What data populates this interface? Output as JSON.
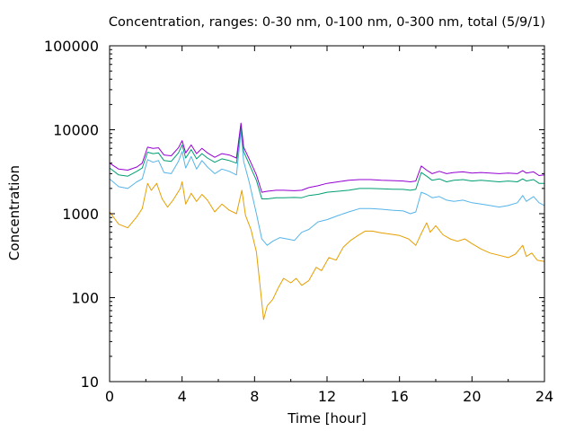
{
  "chart_data": {
    "type": "line",
    "title": "Concentration, ranges: 0-30 nm, 0-100 nm, 0-300 nm, total (5/9/1)",
    "xlabel": "Time [hour]",
    "ylabel": "Concentration",
    "xlim": [
      0,
      24
    ],
    "ylim": [
      10,
      100000
    ],
    "yscale": "log",
    "grid": false,
    "legend": "none",
    "x_ticks": [
      "0",
      "4",
      "8",
      "12",
      "16",
      "20",
      "24"
    ],
    "y_ticks": [
      "10",
      "100",
      "1000",
      "10000",
      "100000"
    ],
    "series": [
      {
        "color": "#e69f00",
        "points": [
          [
            0,
            1050
          ],
          [
            0.5,
            750
          ],
          [
            1,
            680
          ],
          [
            1.5,
            920
          ],
          [
            1.8,
            1150
          ],
          [
            2.1,
            2300
          ],
          [
            2.3,
            1900
          ],
          [
            2.6,
            2300
          ],
          [
            2.9,
            1500
          ],
          [
            3.2,
            1200
          ],
          [
            3.5,
            1450
          ],
          [
            3.9,
            2000
          ],
          [
            4.0,
            2400
          ],
          [
            4.2,
            1300
          ],
          [
            4.5,
            1750
          ],
          [
            4.8,
            1400
          ],
          [
            5.1,
            1700
          ],
          [
            5.4,
            1450
          ],
          [
            5.8,
            1050
          ],
          [
            6.2,
            1300
          ],
          [
            6.6,
            1100
          ],
          [
            7.0,
            1000
          ],
          [
            7.3,
            1900
          ],
          [
            7.5,
            950
          ],
          [
            7.8,
            650
          ],
          [
            8.1,
            350
          ],
          [
            8.3,
            140
          ],
          [
            8.5,
            55
          ],
          [
            8.7,
            80
          ],
          [
            9.0,
            95
          ],
          [
            9.3,
            130
          ],
          [
            9.6,
            170
          ],
          [
            10.0,
            150
          ],
          [
            10.3,
            170
          ],
          [
            10.6,
            140
          ],
          [
            11.0,
            160
          ],
          [
            11.4,
            230
          ],
          [
            11.7,
            210
          ],
          [
            12.1,
            300
          ],
          [
            12.5,
            280
          ],
          [
            12.9,
            400
          ],
          [
            13.3,
            480
          ],
          [
            13.7,
            550
          ],
          [
            14.1,
            620
          ],
          [
            14.5,
            620
          ],
          [
            15.0,
            590
          ],
          [
            15.5,
            570
          ],
          [
            16.0,
            550
          ],
          [
            16.5,
            500
          ],
          [
            16.9,
            420
          ],
          [
            17.2,
            580
          ],
          [
            17.5,
            780
          ],
          [
            17.7,
            600
          ],
          [
            18.0,
            720
          ],
          [
            18.4,
            560
          ],
          [
            18.8,
            500
          ],
          [
            19.2,
            470
          ],
          [
            19.6,
            500
          ],
          [
            20.0,
            440
          ],
          [
            20.5,
            380
          ],
          [
            21.0,
            340
          ],
          [
            21.5,
            320
          ],
          [
            22.0,
            300
          ],
          [
            22.4,
            330
          ],
          [
            22.8,
            420
          ],
          [
            23.0,
            310
          ],
          [
            23.3,
            340
          ],
          [
            23.6,
            280
          ],
          [
            24.0,
            270
          ]
        ]
      },
      {
        "color": "#56b4e9",
        "points": [
          [
            0,
            2600
          ],
          [
            0.5,
            2100
          ],
          [
            1,
            2000
          ],
          [
            1.5,
            2400
          ],
          [
            1.8,
            2600
          ],
          [
            2.1,
            4400
          ],
          [
            2.4,
            4100
          ],
          [
            2.7,
            4300
          ],
          [
            3.0,
            3100
          ],
          [
            3.4,
            3000
          ],
          [
            3.8,
            4200
          ],
          [
            4.0,
            5500
          ],
          [
            4.2,
            3500
          ],
          [
            4.5,
            4800
          ],
          [
            4.8,
            3400
          ],
          [
            5.1,
            4300
          ],
          [
            5.4,
            3600
          ],
          [
            5.8,
            3000
          ],
          [
            6.2,
            3400
          ],
          [
            6.6,
            3200
          ],
          [
            7.0,
            2900
          ],
          [
            7.25,
            9500
          ],
          [
            7.4,
            4200
          ],
          [
            7.7,
            2400
          ],
          [
            8.1,
            1000
          ],
          [
            8.4,
            500
          ],
          [
            8.7,
            420
          ],
          [
            9.0,
            470
          ],
          [
            9.4,
            520
          ],
          [
            9.8,
            500
          ],
          [
            10.2,
            480
          ],
          [
            10.6,
            600
          ],
          [
            11.0,
            650
          ],
          [
            11.5,
            800
          ],
          [
            12.0,
            850
          ],
          [
            12.6,
            950
          ],
          [
            13.2,
            1050
          ],
          [
            13.8,
            1150
          ],
          [
            14.4,
            1150
          ],
          [
            15.0,
            1130
          ],
          [
            15.6,
            1100
          ],
          [
            16.2,
            1080
          ],
          [
            16.6,
            1000
          ],
          [
            16.9,
            1050
          ],
          [
            17.2,
            1800
          ],
          [
            17.5,
            1700
          ],
          [
            17.8,
            1550
          ],
          [
            18.2,
            1600
          ],
          [
            18.6,
            1450
          ],
          [
            19.0,
            1400
          ],
          [
            19.5,
            1450
          ],
          [
            20.0,
            1350
          ],
          [
            20.5,
            1300
          ],
          [
            21.0,
            1250
          ],
          [
            21.5,
            1200
          ],
          [
            22.0,
            1250
          ],
          [
            22.5,
            1350
          ],
          [
            22.8,
            1650
          ],
          [
            23.0,
            1400
          ],
          [
            23.4,
            1600
          ],
          [
            23.7,
            1350
          ],
          [
            24.0,
            1250
          ]
        ]
      },
      {
        "color": "#009e73",
        "points": [
          [
            0,
            3500
          ],
          [
            0.5,
            2900
          ],
          [
            1,
            2800
          ],
          [
            1.5,
            3200
          ],
          [
            1.8,
            3500
          ],
          [
            2.1,
            5400
          ],
          [
            2.4,
            5200
          ],
          [
            2.7,
            5300
          ],
          [
            3.0,
            4300
          ],
          [
            3.4,
            4200
          ],
          [
            3.8,
            5300
          ],
          [
            4.0,
            6600
          ],
          [
            4.2,
            4600
          ],
          [
            4.5,
            5800
          ],
          [
            4.8,
            4500
          ],
          [
            5.1,
            5200
          ],
          [
            5.4,
            4600
          ],
          [
            5.8,
            4100
          ],
          [
            6.2,
            4500
          ],
          [
            6.6,
            4300
          ],
          [
            7.0,
            4000
          ],
          [
            7.25,
            11000
          ],
          [
            7.4,
            5500
          ],
          [
            7.7,
            3900
          ],
          [
            8.1,
            2500
          ],
          [
            8.4,
            1500
          ],
          [
            8.7,
            1500
          ],
          [
            9.2,
            1550
          ],
          [
            9.6,
            1550
          ],
          [
            10.2,
            1560
          ],
          [
            10.6,
            1550
          ],
          [
            11.0,
            1650
          ],
          [
            11.5,
            1700
          ],
          [
            12.0,
            1800
          ],
          [
            12.6,
            1850
          ],
          [
            13.2,
            1900
          ],
          [
            13.8,
            2000
          ],
          [
            14.4,
            2000
          ],
          [
            15.0,
            1980
          ],
          [
            15.6,
            1960
          ],
          [
            16.2,
            1950
          ],
          [
            16.6,
            1900
          ],
          [
            16.9,
            1950
          ],
          [
            17.2,
            3100
          ],
          [
            17.5,
            2800
          ],
          [
            17.8,
            2500
          ],
          [
            18.2,
            2600
          ],
          [
            18.6,
            2400
          ],
          [
            19.0,
            2500
          ],
          [
            19.5,
            2550
          ],
          [
            20.0,
            2450
          ],
          [
            20.5,
            2500
          ],
          [
            21.0,
            2450
          ],
          [
            21.5,
            2400
          ],
          [
            22.0,
            2450
          ],
          [
            22.5,
            2400
          ],
          [
            22.8,
            2600
          ],
          [
            23.0,
            2450
          ],
          [
            23.4,
            2550
          ],
          [
            23.7,
            2300
          ],
          [
            24.0,
            2300
          ]
        ]
      },
      {
        "color": "#9400d3",
        "points": [
          [
            0,
            4000
          ],
          [
            0.5,
            3400
          ],
          [
            1,
            3300
          ],
          [
            1.5,
            3600
          ],
          [
            1.8,
            4000
          ],
          [
            2.1,
            6200
          ],
          [
            2.4,
            6000
          ],
          [
            2.7,
            6100
          ],
          [
            3.0,
            5000
          ],
          [
            3.4,
            4900
          ],
          [
            3.8,
            6100
          ],
          [
            4.0,
            7400
          ],
          [
            4.2,
            5300
          ],
          [
            4.5,
            6600
          ],
          [
            4.8,
            5200
          ],
          [
            5.1,
            6000
          ],
          [
            5.4,
            5300
          ],
          [
            5.8,
            4700
          ],
          [
            6.2,
            5200
          ],
          [
            6.6,
            5000
          ],
          [
            7.0,
            4600
          ],
          [
            7.25,
            12000
          ],
          [
            7.4,
            6200
          ],
          [
            7.7,
            4500
          ],
          [
            8.1,
            2900
          ],
          [
            8.4,
            1800
          ],
          [
            8.7,
            1850
          ],
          [
            9.2,
            1900
          ],
          [
            9.6,
            1900
          ],
          [
            10.2,
            1880
          ],
          [
            10.6,
            1900
          ],
          [
            11.0,
            2050
          ],
          [
            11.5,
            2150
          ],
          [
            12.0,
            2300
          ],
          [
            12.6,
            2400
          ],
          [
            13.2,
            2500
          ],
          [
            13.8,
            2550
          ],
          [
            14.4,
            2550
          ],
          [
            15.0,
            2500
          ],
          [
            15.6,
            2480
          ],
          [
            16.2,
            2450
          ],
          [
            16.6,
            2400
          ],
          [
            16.9,
            2450
          ],
          [
            17.2,
            3700
          ],
          [
            17.5,
            3300
          ],
          [
            17.8,
            3000
          ],
          [
            18.2,
            3200
          ],
          [
            18.6,
            3000
          ],
          [
            19.0,
            3100
          ],
          [
            19.5,
            3150
          ],
          [
            20.0,
            3050
          ],
          [
            20.5,
            3100
          ],
          [
            21.0,
            3050
          ],
          [
            21.5,
            3000
          ],
          [
            22.0,
            3050
          ],
          [
            22.5,
            3000
          ],
          [
            22.8,
            3250
          ],
          [
            23.0,
            3050
          ],
          [
            23.4,
            3150
          ],
          [
            23.7,
            2850
          ],
          [
            24.0,
            2900
          ]
        ]
      }
    ]
  }
}
